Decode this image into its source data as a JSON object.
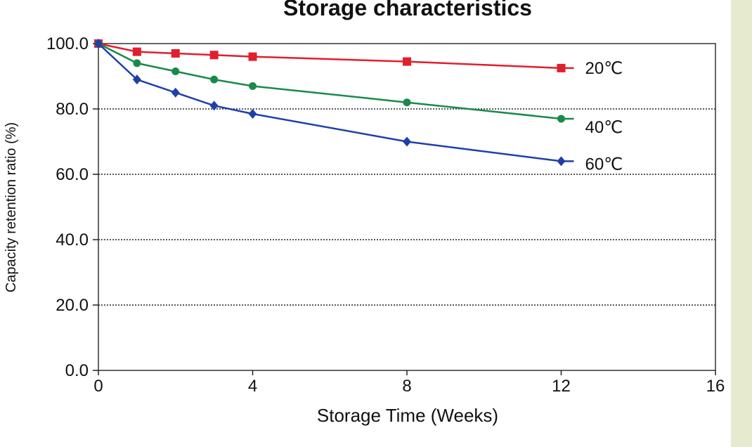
{
  "colors": {
    "outer_background": "#e6ebcf",
    "panel_background": "#ffffff",
    "series_20": "#e01f2e",
    "series_40": "#1a8a4a",
    "series_60": "#1e40a8"
  },
  "chart_data": {
    "type": "line",
    "title": "Storage characteristics",
    "xlabel": "Storage Time (Weeks)",
    "ylabel": "Capacity retention ratio (%)",
    "xlim": [
      0,
      16
    ],
    "ylim": [
      0,
      100
    ],
    "xticks": [
      0,
      4,
      8,
      12,
      16
    ],
    "yticks": [
      0,
      20,
      40,
      60,
      80,
      100
    ],
    "ytick_labels": [
      "0.0",
      "20.0",
      "40.0",
      "60.0",
      "80.0",
      "100.0"
    ],
    "xtick_labels": [
      "0",
      "4",
      "8",
      "12",
      "16"
    ],
    "grid": "horizontal dotted",
    "series": [
      {
        "name": "20℃",
        "marker": "square",
        "color": "#e01f2e",
        "x": [
          0,
          1,
          2,
          3,
          4,
          8,
          12
        ],
        "y": [
          100.0,
          97.5,
          97.0,
          96.5,
          96.0,
          94.5,
          92.5
        ]
      },
      {
        "name": "40℃",
        "marker": "circle",
        "color": "#1a8a4a",
        "x": [
          0,
          1,
          2,
          3,
          4,
          8,
          12
        ],
        "y": [
          100.0,
          94.0,
          91.5,
          89.0,
          87.0,
          82.0,
          77.0
        ]
      },
      {
        "name": "60℃",
        "marker": "diamond",
        "color": "#1e40a8",
        "x": [
          0,
          1,
          2,
          3,
          4,
          8,
          12
        ],
        "y": [
          100.0,
          89.0,
          85.0,
          81.0,
          78.5,
          70.0,
          64.0
        ]
      }
    ]
  }
}
